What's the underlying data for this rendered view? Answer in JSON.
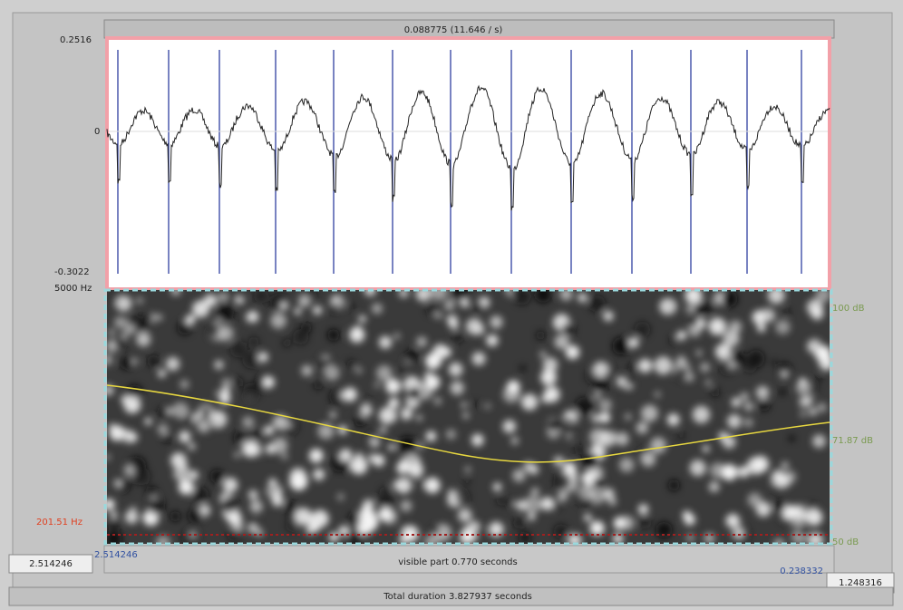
{
  "window": {
    "cursor_readout": "0.088775 (11.646 / s)",
    "waveform": {
      "max_label": "0.2516",
      "zero_label": "0",
      "min_label": "-0.3022"
    },
    "spectrogram": {
      "top_freq_label": "5000 Hz",
      "pitch_readout": "201.51 Hz",
      "intensity_top_label": "100 dB",
      "intensity_value_label": "71.87 dB",
      "intensity_bottom_label": "50 dB"
    },
    "selection": {
      "start_label": "2.514246",
      "end_label": "0.238332",
      "visible_label": "visible part 0.770 seconds"
    },
    "bottom_bar": {
      "left_box": "2.514246",
      "right_box": "1.248316",
      "total_duration": "Total duration 3.827937 seconds"
    }
  }
}
